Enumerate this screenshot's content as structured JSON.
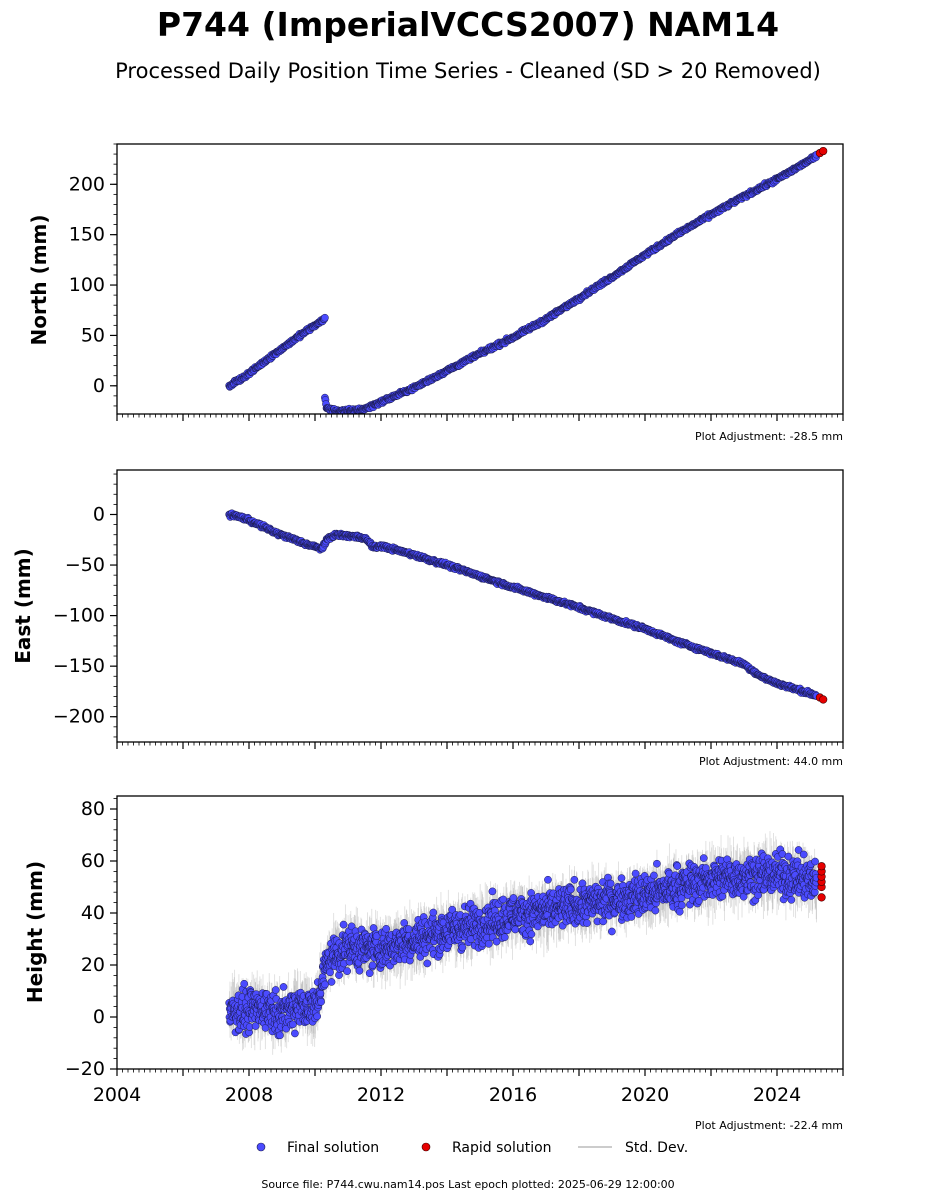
{
  "title": "P744 (ImperialVCCS2007) NAM14",
  "subtitle": "Processed Daily Position Time Series - Cleaned (SD > 20 Removed)",
  "footer": "Source file: P744.cwu.nam14.pos  Last epoch plotted: 2025-06-29 12:00:00",
  "legend": [
    {
      "label": "Final solution",
      "color": "#4b4bff"
    },
    {
      "label": "Rapid solution",
      "color": "#e60000"
    },
    {
      "label": "Std. Dev.",
      "color": "#bbbbbb"
    }
  ],
  "colors": {
    "final": "#4b4bff",
    "rapid": "#e60000",
    "stddev": "#999999",
    "edge": "#1a1a4a"
  },
  "x_tick_labels": [
    "2004",
    "2008",
    "2012",
    "2016",
    "2020",
    "2024"
  ],
  "chart_data": [
    {
      "type": "scatter",
      "ylabel": "North (mm)",
      "plot_adjustment": "Plot Adjustment: -28.5 mm",
      "xlim": [
        2004.0,
        2026.0
      ],
      "ylim": [
        -28,
        240
      ],
      "yticks": [
        0,
        50,
        100,
        150,
        200
      ],
      "ytick_labels": [
        "0",
        "50",
        "100",
        "150",
        "200"
      ],
      "series": [
        {
          "name": "Final solution",
          "x": [
            2007.4,
            2008.0,
            2008.5,
            2009.0,
            2009.5,
            2010.0,
            2010.3
          ],
          "y": [
            0,
            12,
            25,
            37,
            49,
            60,
            67
          ]
        },
        {
          "name": "Final solution",
          "x": [
            2010.3,
            2010.35,
            2010.6,
            2011.0,
            2011.5,
            2012.0,
            2013.0,
            2014.0,
            2015.0,
            2016.0,
            2017.0,
            2018.0,
            2019.0,
            2020.0,
            2021.0,
            2022.0,
            2023.0,
            2024.0,
            2025.2
          ],
          "y": [
            -12,
            -22,
            -25,
            -25,
            -23,
            -16,
            -2,
            15,
            32,
            48,
            66,
            87,
            108,
            130,
            151,
            170,
            188,
            205,
            228
          ]
        },
        {
          "name": "Rapid solution",
          "x": [
            2025.3,
            2025.4
          ],
          "y": [
            231,
            233
          ]
        }
      ]
    },
    {
      "type": "scatter",
      "ylabel": "East (mm)",
      "plot_adjustment": "Plot Adjustment: 44.0 mm",
      "xlim": [
        2004.0,
        2026.0
      ],
      "ylim": [
        -225,
        44
      ],
      "yticks": [
        -200,
        -150,
        -100,
        -50,
        0
      ],
      "ytick_labels": [
        "−200",
        "−150",
        "−100",
        "−50",
        "0"
      ],
      "series": [
        {
          "name": "Final solution",
          "x": [
            2007.4,
            2007.8,
            2008.3,
            2008.8,
            2009.3,
            2009.8,
            2010.2,
            2010.4,
            2010.6,
            2011.0,
            2011.5,
            2011.8,
            2012.0,
            2013.0,
            2014.0,
            2015.0,
            2016.0,
            2017.0,
            2018.0,
            2019.0,
            2020.0,
            2021.0,
            2022.0,
            2023.0,
            2023.5,
            2024.0,
            2025.2
          ],
          "y": [
            0,
            -3,
            -10,
            -18,
            -24,
            -30,
            -34,
            -24,
            -20,
            -21,
            -23,
            -33,
            -31,
            -40,
            -50,
            -61,
            -72,
            -82,
            -92,
            -103,
            -113,
            -126,
            -137,
            -148,
            -160,
            -167,
            -179
          ]
        },
        {
          "name": "Rapid solution",
          "x": [
            2025.3,
            2025.4
          ],
          "y": [
            -181,
            -183
          ]
        }
      ]
    },
    {
      "type": "scatter",
      "ylabel": "Height (mm)",
      "plot_adjustment": "Plot Adjustment: -22.4 mm",
      "xlim": [
        2004.0,
        2026.0
      ],
      "ylim": [
        -20,
        85
      ],
      "yticks": [
        -20,
        0,
        20,
        40,
        60,
        80
      ],
      "ytick_labels": [
        "−20",
        "0",
        "20",
        "40",
        "60",
        "80"
      ],
      "series": [
        {
          "name": "Final solution",
          "x": [
            2007.4,
            2008.0,
            2008.5,
            2009.0,
            2009.5,
            2010.0,
            2010.4,
            2011.0,
            2012.0,
            2013.0,
            2014.0,
            2015.0,
            2016.0,
            2017.0,
            2018.0,
            2019.0,
            2020.0,
            2021.0,
            2022.0,
            2023.0,
            2024.0,
            2025.2
          ],
          "y": [
            3,
            2,
            4,
            1,
            5,
            3,
            22,
            27,
            26,
            30,
            33,
            36,
            39,
            41,
            43,
            45,
            47,
            50,
            53,
            54,
            55,
            52
          ]
        },
        {
          "name": "Rapid solution",
          "x": [
            2025.35,
            2025.35,
            2025.35,
            2025.35,
            2025.35,
            2025.35
          ],
          "y": [
            46,
            50,
            52,
            54,
            56,
            58
          ]
        }
      ]
    }
  ]
}
